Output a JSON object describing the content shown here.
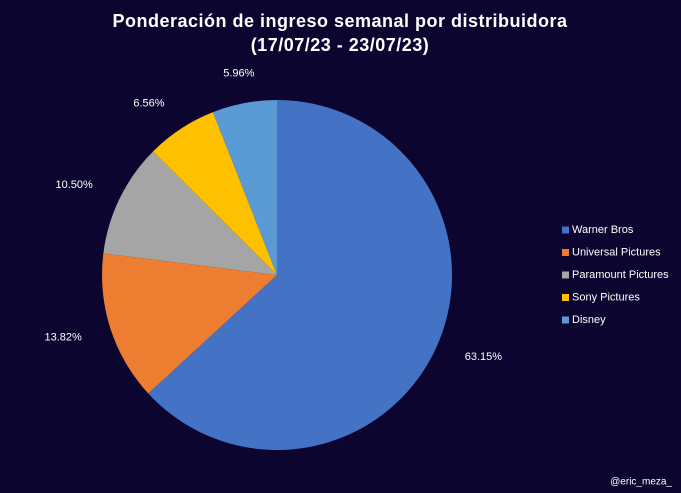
{
  "chart_data": {
    "type": "pie",
    "title": "Ponderación de ingreso semanal por distribuidora",
    "subtitle": "(17/07/23 - 23/07/23)",
    "categories": [
      "Warner Bros",
      "Universal Pictures",
      "Paramount Pictures",
      "Sony Pictures",
      "Disney"
    ],
    "values": [
      63.15,
      13.82,
      10.5,
      6.56,
      5.96
    ],
    "value_labels": [
      "63.15%",
      "13.82%",
      "10.50%",
      "6.56%",
      "5.96%"
    ],
    "colors": [
      "#4472c4",
      "#ed7d31",
      "#a5a5a5",
      "#ffc000",
      "#5b9bd5"
    ],
    "legend": "right",
    "annotation": "@eric_meza_"
  }
}
